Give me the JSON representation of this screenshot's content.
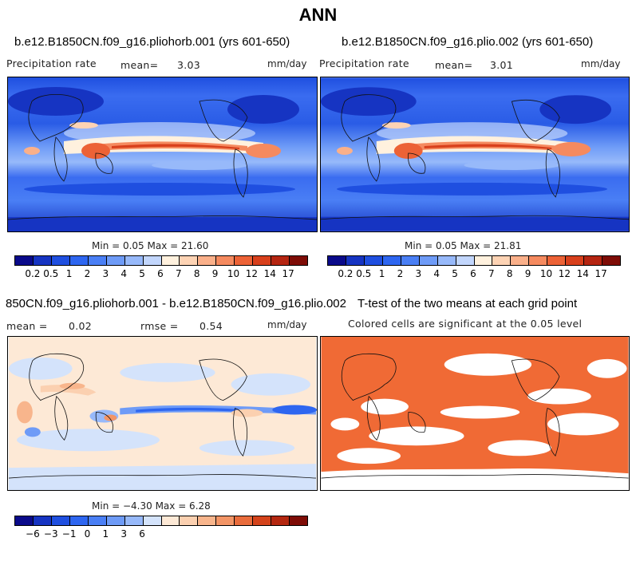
{
  "title": "ANN",
  "panels": [
    {
      "case": "b.e12.B1850CN.f09_g16.pliohorb.001 (yrs 601-650)",
      "variable": "Precipitation rate",
      "stat_label": "mean=",
      "stat_value": "3.03",
      "units": "mm/day",
      "minmax": "Min =   0.05 Max =  21.60",
      "colorbar_labels": [
        "0.2",
        "0.5",
        "1",
        "2",
        "3",
        "4",
        "5",
        "6",
        "7",
        "8",
        "9",
        "10",
        "12",
        "14",
        "17"
      ]
    },
    {
      "case": "b.e12.B1850CN.f09_g16.plio.002 (yrs 601-650)",
      "variable": "Precipitation rate",
      "stat_label": "mean=",
      "stat_value": "3.01",
      "units": "mm/day",
      "minmax": "Min =   0.05 Max =  21.81",
      "colorbar_labels": [
        "0.2",
        "0.5",
        "1",
        "2",
        "3",
        "4",
        "5",
        "6",
        "7",
        "8",
        "9",
        "10",
        "12",
        "14",
        "17"
      ]
    },
    {
      "case": "850CN.f09_g16.pliohorb.001 - b.e12.B1850CN.f09_g16.plio.002",
      "mean_label": "mean =",
      "mean_value": "0.02",
      "rmse_label": "rmse =",
      "rmse_value": "0.54",
      "units": "mm/day",
      "minmax": "Min =  −4.30 Max =   6.28",
      "colorbar_labels": [
        "−6",
        "−3",
        "−1",
        "0",
        "1",
        "3",
        "6"
      ]
    },
    {
      "title": "T-test of the two means at each grid point",
      "subtitle": "Colored cells are significant at the 0.05 level"
    }
  ],
  "chart_data": [
    {
      "type": "heatmap",
      "title": "b.e12.B1850CN.f09_g16.pliohorb.001 (yrs 601-650)",
      "variable": "Precipitation rate",
      "units": "mm/day",
      "mean": 3.03,
      "min": 0.05,
      "max": 21.6,
      "contour_levels": [
        0.2,
        0.5,
        1,
        2,
        3,
        4,
        5,
        6,
        7,
        8,
        9,
        10,
        12,
        14,
        17
      ],
      "colors": [
        "#0a0a8a",
        "#1634c2",
        "#1f4fe0",
        "#2e66f0",
        "#4a7ff5",
        "#6e9bf7",
        "#97b9fa",
        "#c2d6fc",
        "#fff1de",
        "#fdd3b4",
        "#fab08a",
        "#f58a5f",
        "#ec6236",
        "#d8401c",
        "#b52511",
        "#7e0c06"
      ],
      "colors_visible": true
    },
    {
      "type": "heatmap",
      "title": "b.e12.B1850CN.f09_g16.plio.002 (yrs 601-650)",
      "variable": "Precipitation rate",
      "units": "mm/day",
      "mean": 3.01,
      "min": 0.05,
      "max": 21.81,
      "contour_levels": [
        0.2,
        0.5,
        1,
        2,
        3,
        4,
        5,
        6,
        7,
        8,
        9,
        10,
        12,
        14,
        17
      ],
      "colors": [
        "#0a0a8a",
        "#1634c2",
        "#1f4fe0",
        "#2e66f0",
        "#4a7ff5",
        "#6e9bf7",
        "#97b9fa",
        "#c2d6fc",
        "#fff1de",
        "#fdd3b4",
        "#fab08a",
        "#f58a5f",
        "#ec6236",
        "#d8401c",
        "#b52511",
        "#7e0c06"
      ]
    },
    {
      "type": "heatmap",
      "title": "850CN.f09_g16.pliohorb.001 - b.e12.B1850CN.f09_g16.plio.002",
      "units": "mm/day",
      "mean": 0.02,
      "rmse": 0.54,
      "min": -4.3,
      "max": 6.28,
      "contour_levels": [
        -6,
        -3,
        -1,
        0,
        1,
        3,
        6
      ],
      "colors": [
        "#0a0a8a",
        "#1634c2",
        "#1f4fe0",
        "#2e66f0",
        "#4a7ff5",
        "#6e9bf7",
        "#97b9fa",
        "#d4e3fb",
        "#fde9d6",
        "#fbd0b0",
        "#f8b58c",
        "#f39566",
        "#e96c3c",
        "#d4431b",
        "#b42710",
        "#7e0c06"
      ]
    },
    {
      "type": "heatmap",
      "title": "T-test of the two means at each grid point",
      "subtitle": "Colored cells are significant at the 0.05 level",
      "significance_level": 0.05,
      "significant_color": "#f06a35"
    }
  ]
}
